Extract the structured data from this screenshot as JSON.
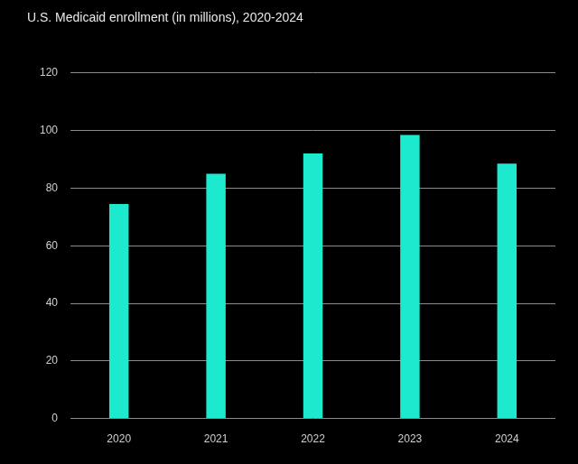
{
  "chart_data": {
    "type": "bar",
    "title": "U.S. Medicaid enrollment (in millions), 2020-2024",
    "categories": [
      "2020",
      "2021",
      "2022",
      "2023",
      "2024"
    ],
    "values": [
      74.5,
      85,
      92,
      98.5,
      88.5
    ],
    "color": "#1de9cf",
    "ylim": [
      0,
      120
    ],
    "yticks": [
      0,
      20,
      40,
      60,
      80,
      100,
      120
    ],
    "grid": true
  }
}
